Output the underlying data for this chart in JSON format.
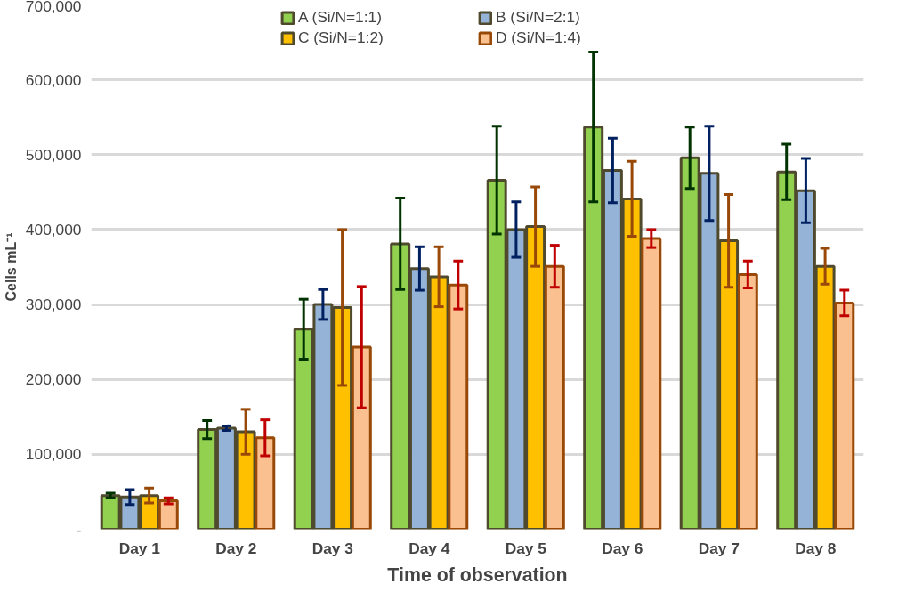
{
  "chart_data": {
    "type": "bar",
    "xlabel": "Time of observation",
    "ylabel": "Cells mL⁻¹",
    "categories": [
      "Day 1",
      "Day 2",
      "Day 3",
      "Day 4",
      "Day 5",
      "Day 6",
      "Day 7",
      "Day 8"
    ],
    "series": [
      {
        "name": "A (Si/N=1:1)",
        "color": "#92d050",
        "values": [
          45000,
          133000,
          267000,
          381000,
          466000,
          537000,
          496000,
          477000
        ],
        "errors": [
          3000,
          12000,
          40000,
          61000,
          72000,
          100000,
          41000,
          37000
        ]
      },
      {
        "name": "B (Si/N=2:1)",
        "color": "#95b3d7",
        "values": [
          43000,
          135000,
          300000,
          348000,
          400000,
          479000,
          475000,
          452000
        ],
        "errors": [
          10000,
          3000,
          20000,
          29000,
          37000,
          43000,
          63000,
          43000
        ]
      },
      {
        "name": "C (Si/N=1:2)",
        "color": "#ffc000",
        "values": [
          45000,
          130000,
          296000,
          337000,
          404000,
          441000,
          385000,
          351000
        ],
        "errors": [
          10000,
          30000,
          104000,
          40000,
          53000,
          50000,
          62000,
          24000
        ]
      },
      {
        "name": "D (Si/N=1:4)",
        "color": "#fac090",
        "values": [
          38000,
          122000,
          243000,
          326000,
          351000,
          388000,
          340000,
          302000
        ],
        "errors": [
          4000,
          24000,
          81000,
          32000,
          28000,
          12000,
          18000,
          17000
        ]
      }
    ],
    "ylim": [
      0,
      700000
    ],
    "yticks": [
      {
        "value": 0,
        "label": "-"
      },
      {
        "value": 100000,
        "label": "100,000"
      },
      {
        "value": 200000,
        "label": "200,000"
      },
      {
        "value": 300000,
        "label": "300,000"
      },
      {
        "value": 400000,
        "label": "400,000"
      },
      {
        "value": 500000,
        "label": "500,000"
      },
      {
        "value": 600000,
        "label": "600,000"
      },
      {
        "value": 700000,
        "label": "700,000"
      }
    ],
    "grid": "y",
    "legend": "top"
  }
}
